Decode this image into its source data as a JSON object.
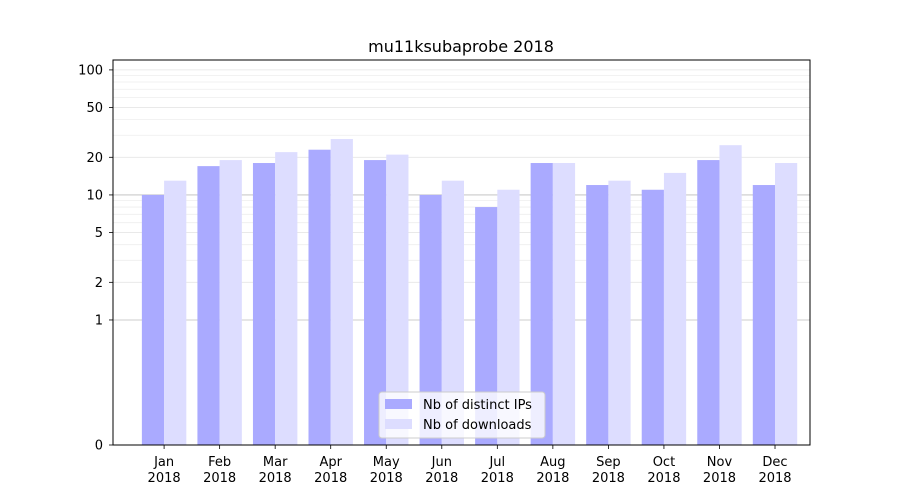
{
  "chart_data": {
    "type": "bar",
    "title": "mu11ksubaprobe 2018",
    "categories": [
      [
        "Jan",
        "2018"
      ],
      [
        "Feb",
        "2018"
      ],
      [
        "Mar",
        "2018"
      ],
      [
        "Apr",
        "2018"
      ],
      [
        "May",
        "2018"
      ],
      [
        "Jun",
        "2018"
      ],
      [
        "Jul",
        "2018"
      ],
      [
        "Aug",
        "2018"
      ],
      [
        "Sep",
        "2018"
      ],
      [
        "Oct",
        "2018"
      ],
      [
        "Nov",
        "2018"
      ],
      [
        "Dec",
        "2018"
      ]
    ],
    "series": [
      {
        "name": "Nb of distinct IPs",
        "color": "#aaaaff",
        "values": [
          10,
          17,
          18,
          23,
          19,
          10,
          8,
          18,
          12,
          11,
          19,
          12
        ]
      },
      {
        "name": "Nb of downloads",
        "color": "#ddddff",
        "values": [
          13,
          19,
          22,
          28,
          21,
          13,
          11,
          18,
          13,
          15,
          25,
          18
        ]
      }
    ],
    "y_scale": "symlog",
    "ylim": [
      0,
      120
    ],
    "y_ticks": [
      0,
      1,
      2,
      5,
      10,
      20,
      50,
      100
    ],
    "y_tick_labels": [
      "0",
      "1",
      "2",
      "5",
      "10",
      "20",
      "50",
      "100"
    ],
    "grid": true,
    "legend_position": "bottom-center"
  }
}
